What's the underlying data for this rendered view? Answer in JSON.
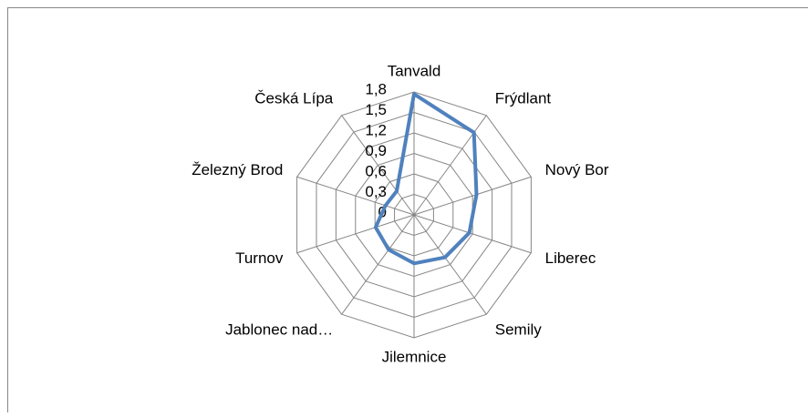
{
  "chart_data": {
    "type": "radar",
    "categories": [
      "Tanvald",
      "Frýdlant",
      "Nový Bor",
      "Liberec",
      "Semily",
      "Jilemnice",
      "Jablonec nad…",
      "Turnov",
      "Železný Brod",
      "Česká Lípa"
    ],
    "values": [
      1.77,
      1.49,
      0.96,
      0.85,
      0.77,
      0.71,
      0.63,
      0.59,
      0.44,
      0.43
    ],
    "color": "#4f81bd",
    "ylim": [
      0,
      1.8
    ],
    "yticks": [
      0,
      {
        "value": 0.3,
        "label": "0,3"
      },
      {
        "value": 0.6,
        "label": "0,6"
      },
      {
        "value": 0.9,
        "label": "0,9"
      },
      {
        "value": 1.2,
        "label": "1,2"
      },
      {
        "value": 1.5,
        "label": "1,5"
      },
      {
        "value": 1.8,
        "label": "1,8"
      }
    ],
    "grid": true
  }
}
